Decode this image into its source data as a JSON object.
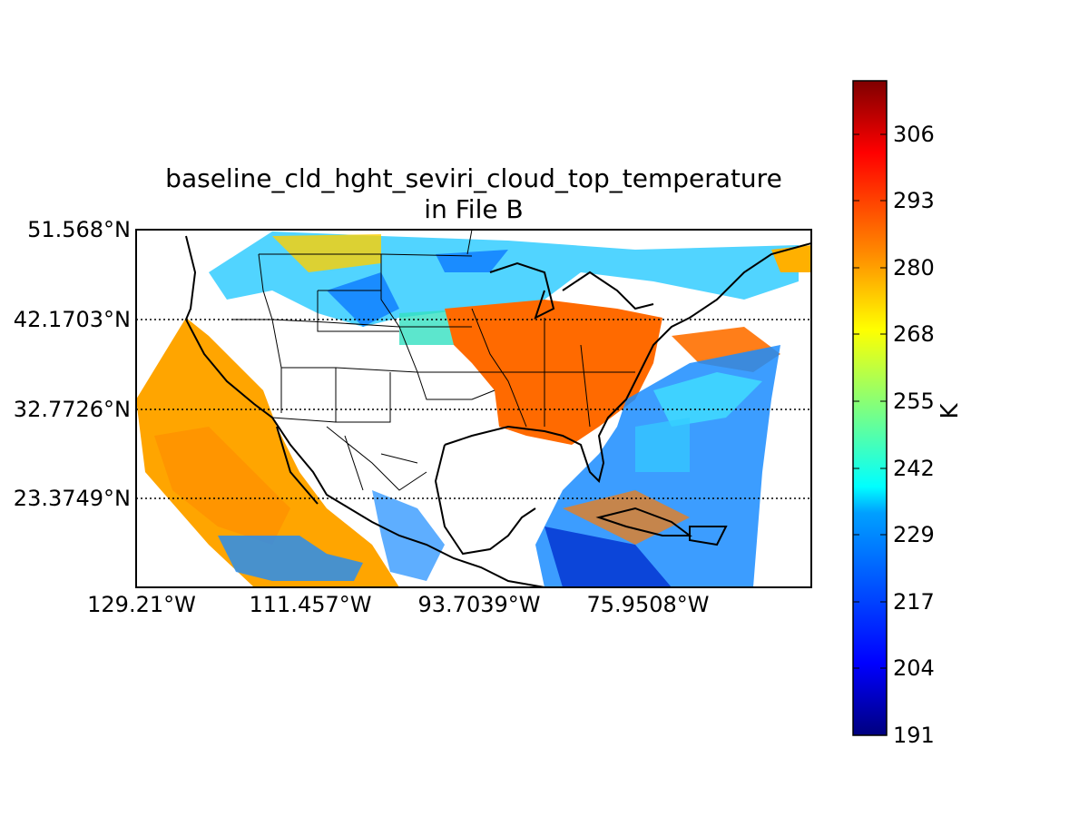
{
  "map": {
    "title_line1": "baseline_cld_hght_seviri_cloud_top_temperature",
    "title_line2": "in File B",
    "lat_labels": [
      "51.568°N",
      "42.1703°N",
      "32.7726°N",
      "23.3749°N"
    ],
    "lon_labels": [
      "129.21°W",
      "111.457°W",
      "93.7039°W",
      "75.9508°W"
    ]
  },
  "colorbar": {
    "unit": "K",
    "ticks": [
      "306",
      "293",
      "280",
      "268",
      "255",
      "242",
      "229",
      "217",
      "204",
      "191"
    ],
    "min": 191,
    "max": 315,
    "colormap": "jet",
    "colors": [
      "#00007f",
      "#0000ff",
      "#007fff",
      "#00ffff",
      "#7fff7f",
      "#ffff00",
      "#ff7f00",
      "#ff0000",
      "#7f0000"
    ]
  },
  "palette": {
    "warm_orange": "#ff6a00",
    "light_orange": "#ffa500",
    "yellow_orange": "#ffc000",
    "cyan": "#00ccff",
    "blue": "#1060ff",
    "deep_blue": "#0020c0"
  }
}
